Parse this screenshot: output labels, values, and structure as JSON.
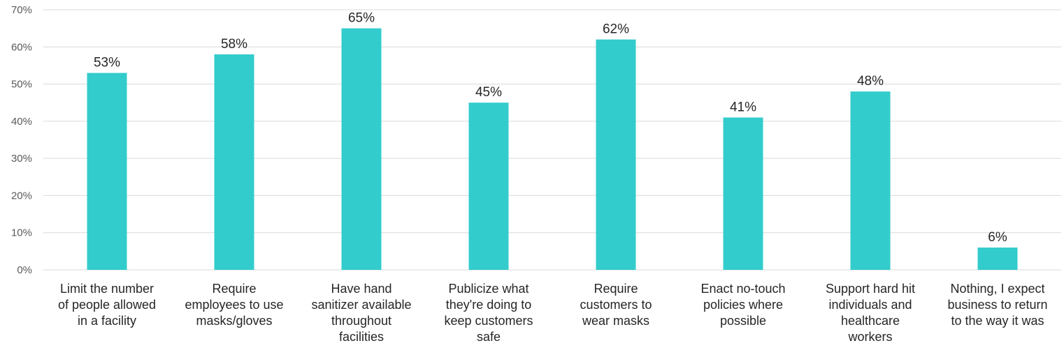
{
  "chart_data": {
    "type": "bar",
    "categories": [
      [
        "Limit the number",
        "of people allowed",
        "in a facility"
      ],
      [
        "Require",
        "employees to use",
        "masks/gloves"
      ],
      [
        "Have hand",
        "sanitizer available",
        "throughout",
        "facilities"
      ],
      [
        "Publicize what",
        "they're doing to",
        "keep customers",
        "safe"
      ],
      [
        "Require",
        "customers to",
        "wear masks"
      ],
      [
        "Enact no-touch",
        "policies where",
        "possible"
      ],
      [
        "Support hard hit",
        "individuals and",
        "healthcare",
        "workers"
      ],
      [
        "Nothing, I expect",
        "business to return",
        "to the way it was"
      ]
    ],
    "values": [
      53,
      58,
      65,
      45,
      62,
      41,
      48,
      6
    ],
    "value_labels": [
      "53%",
      "58%",
      "65%",
      "45%",
      "62%",
      "41%",
      "48%",
      "6%"
    ],
    "ylim": [
      0,
      70
    ],
    "yticks": [
      0,
      10,
      20,
      30,
      40,
      50,
      60,
      70
    ],
    "ytick_labels": [
      "0%",
      "10%",
      "20%",
      "30%",
      "40%",
      "50%",
      "60%",
      "70%"
    ],
    "grid": true,
    "bar_color": "#33CCCC",
    "grid_color": "#D9D9D9"
  }
}
